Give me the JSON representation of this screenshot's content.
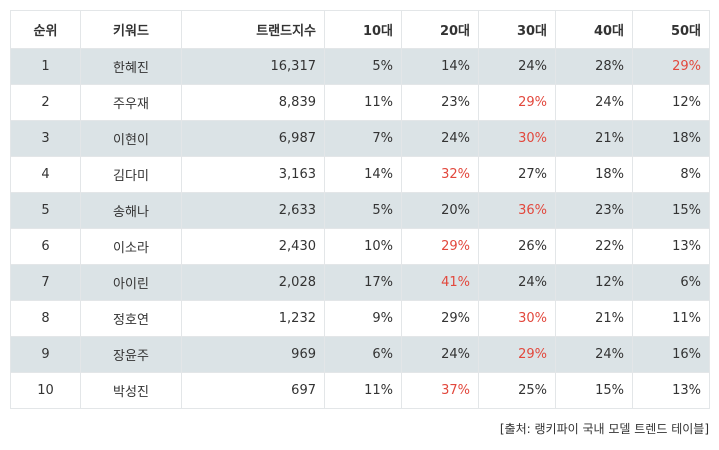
{
  "table": {
    "headers": [
      "순위",
      "키워드",
      "트랜드지수",
      "10대",
      "20대",
      "30대",
      "40대",
      "50대"
    ],
    "rows": [
      {
        "rank": "1",
        "keyword": "한혜진",
        "index": "16,317",
        "a10": "5%",
        "a20": "14%",
        "a30": "24%",
        "a40": "28%",
        "a50": "29%",
        "highlight": "a50"
      },
      {
        "rank": "2",
        "keyword": "주우재",
        "index": "8,839",
        "a10": "11%",
        "a20": "23%",
        "a30": "29%",
        "a40": "24%",
        "a50": "12%",
        "highlight": "a30"
      },
      {
        "rank": "3",
        "keyword": "이현이",
        "index": "6,987",
        "a10": "7%",
        "a20": "24%",
        "a30": "30%",
        "a40": "21%",
        "a50": "18%",
        "highlight": "a30"
      },
      {
        "rank": "4",
        "keyword": "김다미",
        "index": "3,163",
        "a10": "14%",
        "a20": "32%",
        "a30": "27%",
        "a40": "18%",
        "a50": "8%",
        "highlight": "a20"
      },
      {
        "rank": "5",
        "keyword": "송해나",
        "index": "2,633",
        "a10": "5%",
        "a20": "20%",
        "a30": "36%",
        "a40": "23%",
        "a50": "15%",
        "highlight": "a30"
      },
      {
        "rank": "6",
        "keyword": "이소라",
        "index": "2,430",
        "a10": "10%",
        "a20": "29%",
        "a30": "26%",
        "a40": "22%",
        "a50": "13%",
        "highlight": "a20"
      },
      {
        "rank": "7",
        "keyword": "아이린",
        "index": "2,028",
        "a10": "17%",
        "a20": "41%",
        "a30": "24%",
        "a40": "12%",
        "a50": "6%",
        "highlight": "a20"
      },
      {
        "rank": "8",
        "keyword": "정호연",
        "index": "1,232",
        "a10": "9%",
        "a20": "29%",
        "a30": "30%",
        "a40": "21%",
        "a50": "11%",
        "highlight": "a30"
      },
      {
        "rank": "9",
        "keyword": "장윤주",
        "index": "969",
        "a10": "6%",
        "a20": "24%",
        "a30": "29%",
        "a40": "24%",
        "a50": "16%",
        "highlight": "a30"
      },
      {
        "rank": "10",
        "keyword": "박성진",
        "index": "697",
        "a10": "11%",
        "a20": "37%",
        "a30": "25%",
        "a40": "15%",
        "a50": "13%",
        "highlight": "a20"
      }
    ]
  },
  "source": "[출처: 랭키파이 국내 모델 트렌드 테이블]",
  "colors": {
    "highlight": "#e2483d",
    "shaded_row": "#dbe3e6",
    "border": "#e3e6e8"
  }
}
